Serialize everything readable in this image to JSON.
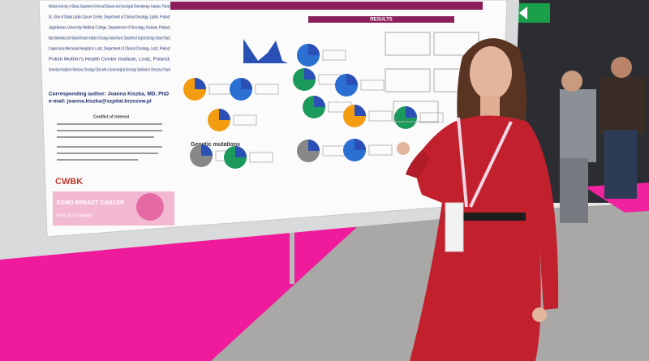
{
  "poster": {
    "affiliations": [
      "Medical University of Silesia, Department of Internal Diseases and Oncological Chemotherapy, Katowice, Poland;",
      "St. John of Dukla Lublin Cancer Center, Department of Clinical Oncology, Lublin, Poland;",
      "Jagiellonian University Medical College, Department of Oncology, Krakow, Poland;",
      "Maria Sklodowska-Curie National Research Institute of Oncology, Krakow Branch, Department of Surgical Oncology, Krakow, Poland;",
      "Copernicus Memorial Hospital in Lodz, Department of Clinical Oncology, Lodz, Poland;",
      "Polish Mother's Health Center Institute, Lodz, Poland;",
      "University Hospital in Rzeszow, Oncology Clinic with a Gynecological Oncology Subdivision, Rzeszow, Poland"
    ],
    "corresponding_author": "Corresponding author: Joanna Kiszka, MD, PhD",
    "email": "e-mail: joanna.kiszka@szpital.brzozow.pl",
    "conflict_heading": "Conflict of interest",
    "results_heading": "RESULTS",
    "genetic_heading": "Genetic mutations",
    "logo": "CWBK",
    "banner": "ESMO BREAST CANCER",
    "banner_location": "BERLIN GERMANY"
  }
}
